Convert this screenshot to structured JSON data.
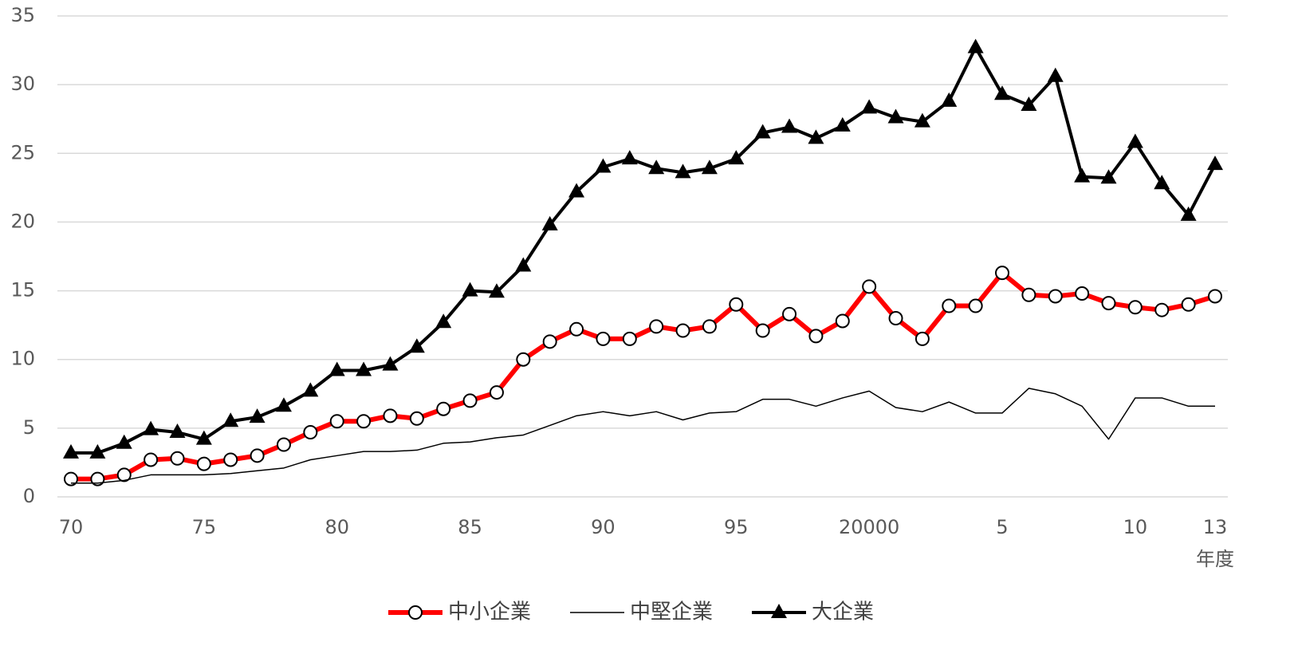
{
  "chart_data": {
    "type": "line",
    "categories": [
      "70",
      null,
      null,
      null,
      null,
      "75",
      null,
      null,
      null,
      null,
      "80",
      null,
      null,
      null,
      null,
      "85",
      null,
      null,
      null,
      null,
      "90",
      null,
      null,
      null,
      null,
      "95",
      null,
      null,
      null,
      null,
      "20000",
      null,
      null,
      null,
      null,
      "5",
      null,
      null,
      null,
      null,
      "10",
      null,
      null,
      "13"
    ],
    "x_label": "年度",
    "ylim": [
      0,
      35
    ],
    "yticks": [
      0,
      5,
      10,
      15,
      20,
      25,
      30,
      35
    ],
    "grid": true,
    "legend": "bottom",
    "series": [
      {
        "name": "中小企業",
        "color": "#ff0000",
        "marker": "circle",
        "values": [
          1.3,
          1.3,
          1.6,
          2.7,
          2.8,
          2.4,
          2.7,
          3.0,
          3.8,
          4.7,
          5.5,
          5.5,
          5.9,
          5.7,
          6.4,
          7.0,
          7.6,
          10.0,
          11.3,
          12.2,
          11.5,
          11.5,
          12.4,
          12.1,
          12.4,
          14.0,
          12.1,
          13.3,
          11.7,
          12.8,
          15.3,
          13.0,
          11.5,
          13.9,
          13.9,
          16.3,
          14.7,
          14.6,
          14.8,
          14.1,
          13.8,
          13.6,
          14.0,
          14.6
        ]
      },
      {
        "name": "中堅企業",
        "color": "#000000",
        "marker": "none",
        "values": [
          1.0,
          1.0,
          1.2,
          1.6,
          1.6,
          1.6,
          1.7,
          1.9,
          2.1,
          2.7,
          3.0,
          3.3,
          3.3,
          3.4,
          3.9,
          4.0,
          4.3,
          4.5,
          5.2,
          5.9,
          6.2,
          5.9,
          6.2,
          5.6,
          6.1,
          6.2,
          7.1,
          7.1,
          6.6,
          7.2,
          7.7,
          6.5,
          6.2,
          6.9,
          6.1,
          6.1,
          7.9,
          7.5,
          6.6,
          4.2,
          7.2,
          7.2,
          6.6,
          6.6
        ]
      },
      {
        "name": "大企業",
        "color": "#000000",
        "marker": "triangle",
        "values": [
          3.2,
          3.2,
          3.9,
          4.9,
          4.7,
          4.2,
          5.5,
          5.8,
          6.6,
          7.7,
          9.2,
          9.2,
          9.6,
          10.9,
          12.7,
          15.0,
          14.9,
          16.8,
          19.8,
          22.2,
          24.0,
          24.6,
          23.9,
          23.6,
          23.9,
          24.6,
          26.5,
          26.9,
          26.1,
          27.0,
          28.3,
          27.6,
          27.3,
          28.8,
          32.7,
          29.3,
          28.5,
          30.6,
          23.3,
          23.2,
          25.8,
          22.8,
          20.5,
          24.2
        ]
      }
    ]
  }
}
